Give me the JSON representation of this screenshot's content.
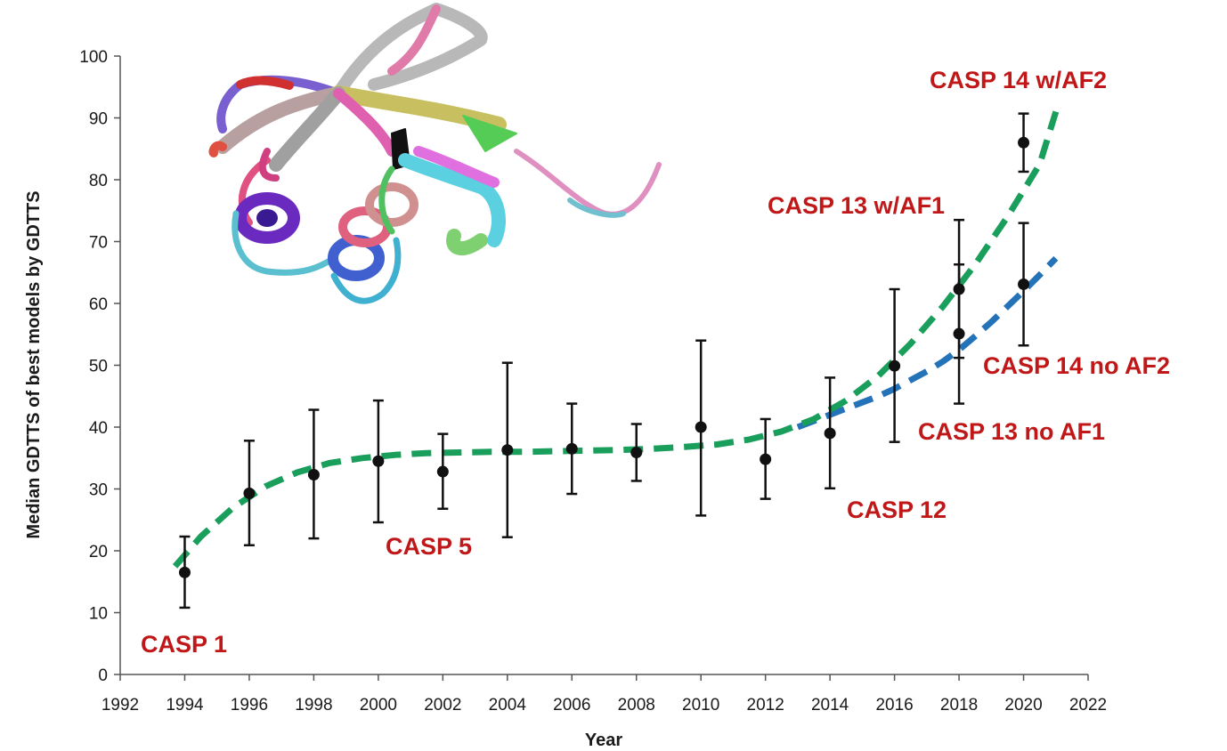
{
  "chart_data": {
    "type": "scatter",
    "xlabel": "Year",
    "ylabel": "Median GDTTS of best models by GDTTS",
    "xlim": [
      1992,
      2022
    ],
    "ylim": [
      0,
      100
    ],
    "x_ticks": [
      "1992",
      "1994",
      "1996",
      "1998",
      "2000",
      "2002",
      "2004",
      "2006",
      "2008",
      "2010",
      "2012",
      "2014",
      "2016",
      "2018",
      "2020",
      "2022"
    ],
    "y_ticks": [
      "0",
      "10",
      "20",
      "30",
      "40",
      "50",
      "60",
      "70",
      "80",
      "90",
      "100"
    ],
    "grid": false,
    "points": [
      {
        "x": 1994,
        "y": 16.5,
        "low": 10.8,
        "high": 22.3
      },
      {
        "x": 1996,
        "y": 29.3,
        "low": 20.9,
        "high": 37.8
      },
      {
        "x": 1998,
        "y": 32.3,
        "low": 22.0,
        "high": 42.8
      },
      {
        "x": 2000,
        "y": 34.5,
        "low": 24.6,
        "high": 44.3
      },
      {
        "x": 2002,
        "y": 32.8,
        "low": 26.8,
        "high": 38.9
      },
      {
        "x": 2004,
        "y": 36.3,
        "low": 22.2,
        "high": 50.4
      },
      {
        "x": 2006,
        "y": 36.5,
        "low": 29.2,
        "high": 43.8
      },
      {
        "x": 2008,
        "y": 35.9,
        "low": 31.3,
        "high": 40.5
      },
      {
        "x": 2010,
        "y": 40.0,
        "low": 25.7,
        "high": 54.0
      },
      {
        "x": 2012,
        "y": 34.8,
        "low": 28.4,
        "high": 41.3
      },
      {
        "x": 2014,
        "y": 39.0,
        "low": 30.1,
        "high": 48.0
      },
      {
        "x": 2016,
        "y": 49.9,
        "low": 37.6,
        "high": 62.3
      },
      {
        "x": 2018,
        "y": 55.1,
        "low": 43.8,
        "high": 66.3
      },
      {
        "x": 2018,
        "y": 62.3,
        "low": 51.2,
        "high": 73.5
      },
      {
        "x": 2020,
        "y": 63.1,
        "low": 53.2,
        "high": 73.0
      },
      {
        "x": 2020,
        "y": 86.0,
        "low": 81.3,
        "high": 90.7
      }
    ],
    "trend_lines": [
      {
        "color": "#1a9e5c",
        "x": [
          1993.7,
          1994.5,
          1995.5,
          1996.5,
          1997.5,
          1998.5,
          1999.5,
          2000.5,
          2001.5,
          2002.5,
          2003.5,
          2004.5,
          2005.5,
          2006.5,
          2007.5,
          2008.5,
          2009.5,
          2010.5,
          2011.5,
          2012.5,
          2013.5,
          2014.5,
          2015.5,
          2016.5,
          2017.5,
          2018.5,
          2019.5,
          2020.5,
          2021.0
        ],
        "y": [
          17.5,
          22.3,
          27.0,
          30.4,
          32.7,
          34.2,
          35.0,
          35.5,
          35.8,
          35.9,
          36.0,
          36.0,
          36.1,
          36.2,
          36.3,
          36.5,
          36.8,
          37.2,
          38.0,
          39.3,
          41.3,
          44.3,
          48.3,
          53.5,
          59.5,
          66.3,
          74.0,
          82.5,
          91.0
        ]
      },
      {
        "color": "#2472b8",
        "x": [
          2013.0,
          2013.5,
          2014.0,
          2014.5,
          2015.0,
          2015.5,
          2016.0,
          2016.5,
          2017.0,
          2017.5,
          2018.0,
          2018.5,
          2019.0,
          2019.5,
          2020.0,
          2020.5,
          2021.0
        ],
        "y": [
          40.0,
          41.0,
          42.0,
          43.0,
          44.0,
          45.0,
          46.2,
          47.6,
          49.0,
          50.6,
          52.5,
          54.7,
          57.0,
          59.5,
          62.0,
          64.6,
          67.3
        ]
      }
    ],
    "annotations": [
      "CASP 1",
      "CASP 5",
      "CASP 12",
      "CASP 13 no AF1",
      "CASP 13 w/AF1",
      "CASP 14 no AF2",
      "CASP 14 w/AF2"
    ]
  }
}
